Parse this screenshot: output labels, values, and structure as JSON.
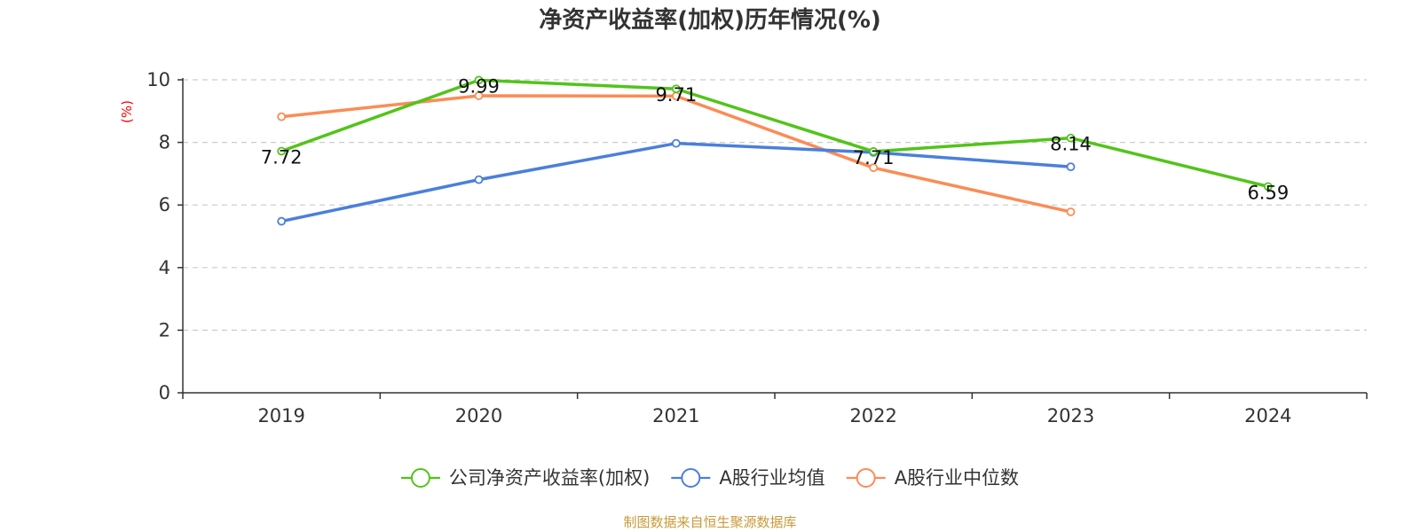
{
  "chart_data": {
    "type": "line",
    "title": "净资产收益率(加权)历年情况(%)",
    "ylabel": "(%)",
    "categories": [
      "2019",
      "2020",
      "2021",
      "2022",
      "2023",
      "2024"
    ],
    "ylim": [
      0,
      10
    ],
    "yticks": [
      0,
      2,
      4,
      6,
      8,
      10
    ],
    "grid": true,
    "legend_position": "bottom",
    "series": [
      {
        "name": "公司净资产收益率(加权)",
        "color": "#52c41a",
        "values": [
          7.72,
          9.99,
          9.71,
          7.71,
          8.14,
          6.59
        ],
        "labels": [
          "7.72",
          "9.99",
          "9.71",
          "7.71",
          "8.14",
          "6.59"
        ]
      },
      {
        "name": "A股行业均值",
        "color": "#4a7fdc",
        "values": [
          5.48,
          6.81,
          7.97,
          7.68,
          7.22,
          null
        ]
      },
      {
        "name": "A股行业中位数",
        "color": "#fb8c55",
        "values": [
          8.82,
          9.49,
          9.48,
          7.19,
          5.78,
          null
        ]
      }
    ]
  },
  "source": "制图数据来自恒生聚源数据库"
}
